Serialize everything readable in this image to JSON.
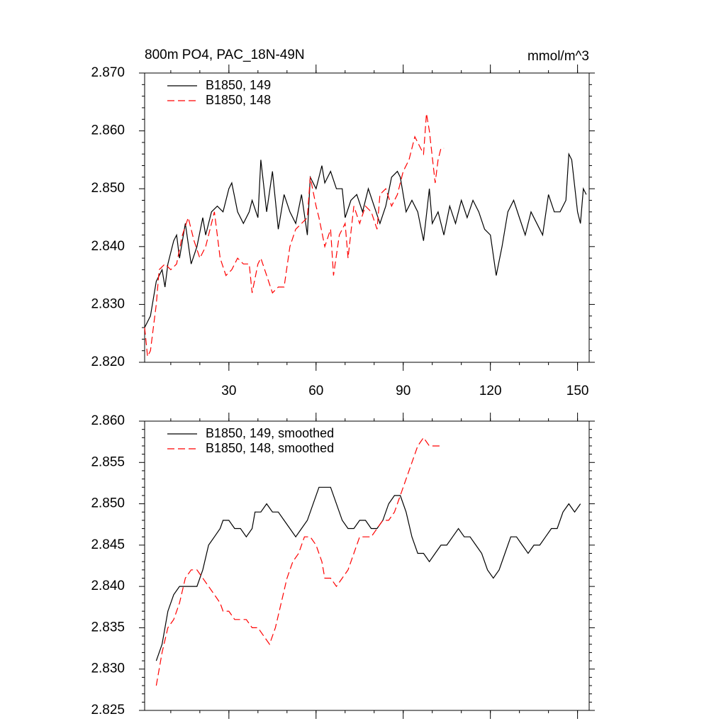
{
  "chart_data": [
    {
      "type": "line",
      "title": "800m PO4, PAC_18N-49N",
      "units": "mmol/m^3",
      "xlim": [
        1,
        154
      ],
      "xticks": [
        30,
        60,
        90,
        120,
        150
      ],
      "show_xtick_labels": true,
      "ylim": [
        2.82,
        2.87
      ],
      "yticks": [
        {
          "value": 2.82,
          "label": "2.820"
        },
        {
          "value": 2.83,
          "label": "2.830"
        },
        {
          "value": 2.84,
          "label": "2.840"
        },
        {
          "value": 2.85,
          "label": "2.850"
        },
        {
          "value": 2.86,
          "label": "2.860"
        },
        {
          "value": 2.87,
          "label": "2.870"
        }
      ],
      "series": [
        {
          "name": "B1850, 149",
          "color": "#000000",
          "dash": false,
          "x": [
            1,
            3,
            5,
            7,
            8,
            9,
            11,
            12,
            13,
            15,
            17,
            19,
            21,
            22,
            24,
            26,
            28,
            30,
            31,
            33,
            35,
            37,
            38,
            40,
            41,
            43,
            45,
            47,
            49,
            51,
            53,
            55,
            57,
            58,
            60,
            62,
            63,
            65,
            67,
            69,
            70,
            72,
            74,
            76,
            78,
            80,
            82,
            84,
            86,
            88,
            89,
            91,
            93,
            95,
            97,
            99,
            100,
            102,
            104,
            106,
            108,
            110,
            112,
            114,
            116,
            118,
            120,
            122,
            124,
            126,
            128,
            130,
            132,
            134,
            136,
            138,
            140,
            142,
            144,
            146,
            147,
            148,
            150,
            151,
            152,
            153
          ],
          "values": [
            2.826,
            2.828,
            2.834,
            2.836,
            2.833,
            2.837,
            2.841,
            2.842,
            2.838,
            2.844,
            2.837,
            2.84,
            2.845,
            2.842,
            2.846,
            2.847,
            2.846,
            2.85,
            2.851,
            2.846,
            2.844,
            2.846,
            2.848,
            2.845,
            2.855,
            2.846,
            2.853,
            2.843,
            2.849,
            2.846,
            2.844,
            2.849,
            2.842,
            2.852,
            2.85,
            2.854,
            2.851,
            2.853,
            2.85,
            2.85,
            2.845,
            2.848,
            2.849,
            2.846,
            2.85,
            2.847,
            2.844,
            2.847,
            2.852,
            2.853,
            2.852,
            2.846,
            2.848,
            2.846,
            2.841,
            2.85,
            2.844,
            2.846,
            2.842,
            2.847,
            2.844,
            2.848,
            2.845,
            2.848,
            2.846,
            2.843,
            2.842,
            2.835,
            2.84,
            2.846,
            2.848,
            2.845,
            2.842,
            2.846,
            2.844,
            2.842,
            2.849,
            2.846,
            2.846,
            2.848,
            2.856,
            2.855,
            2.846,
            2.844,
            2.85,
            2.849
          ]
        },
        {
          "name": "B1850, 148",
          "color": "#ff0000",
          "dash": true,
          "x": [
            1,
            2,
            3,
            5,
            6,
            8,
            10,
            12,
            14,
            16,
            18,
            20,
            22,
            24,
            25,
            27,
            29,
            31,
            33,
            35,
            37,
            38,
            40,
            41,
            43,
            45,
            47,
            49,
            51,
            53,
            55,
            57,
            58,
            60,
            61,
            63,
            65,
            66,
            68,
            70,
            71,
            73,
            75,
            77,
            79,
            81,
            82,
            84,
            86,
            88,
            90,
            92,
            94,
            96,
            97,
            98,
            99,
            101,
            102,
            103,
            104
          ],
          "values": [
            2.826,
            2.821,
            2.822,
            2.83,
            2.836,
            2.837,
            2.836,
            2.837,
            2.842,
            2.845,
            2.841,
            2.838,
            2.84,
            2.844,
            2.846,
            2.838,
            2.835,
            2.836,
            2.838,
            2.837,
            2.837,
            2.832,
            2.837,
            2.838,
            2.835,
            2.832,
            2.833,
            2.833,
            2.84,
            2.843,
            2.844,
            2.845,
            2.852,
            2.847,
            2.845,
            2.84,
            2.843,
            2.835,
            2.842,
            2.844,
            2.838,
            2.847,
            2.844,
            2.847,
            2.846,
            2.843,
            2.849,
            2.85,
            2.847,
            2.849,
            2.853,
            2.855,
            2.859,
            2.857,
            2.856,
            2.863,
            2.86,
            2.851,
            2.855,
            2.857,
            2.857
          ]
        }
      ]
    },
    {
      "type": "line",
      "xlim": [
        1,
        154
      ],
      "xticks": [
        30,
        60,
        90,
        120,
        150
      ],
      "show_xtick_labels": false,
      "ylim": [
        2.825,
        2.86
      ],
      "yticks": [
        2.825,
        {
          "value": 2.83,
          "label": "2.830"
        },
        2.835,
        {
          "value": 2.84,
          "label": "2.840"
        },
        2.845,
        {
          "value": 2.85,
          "label": "2.850"
        },
        2.855,
        {
          "value": 2.86,
          "label": "2.860"
        }
      ],
      "series": [
        {
          "name": "B1850, 149, smoothed",
          "color": "#000000",
          "dash": false,
          "x": [
            5,
            7,
            9,
            11,
            13,
            15,
            17,
            19,
            21,
            23,
            25,
            27,
            28,
            30,
            32,
            34,
            36,
            38,
            39,
            41,
            43,
            45,
            47,
            49,
            51,
            53,
            55,
            57,
            59,
            61,
            63,
            65,
            67,
            69,
            71,
            73,
            75,
            77,
            79,
            81,
            83,
            85,
            87,
            89,
            91,
            93,
            95,
            97,
            99,
            101,
            103,
            105,
            107,
            109,
            111,
            113,
            115,
            117,
            119,
            121,
            123,
            125,
            127,
            129,
            131,
            133,
            135,
            137,
            139,
            141,
            143,
            145,
            147,
            149,
            151
          ],
          "values": [
            2.831,
            2.833,
            2.837,
            2.839,
            2.84,
            2.84,
            2.84,
            2.84,
            2.842,
            2.845,
            2.846,
            2.847,
            2.848,
            2.848,
            2.847,
            2.847,
            2.846,
            2.847,
            2.849,
            2.849,
            2.85,
            2.849,
            2.849,
            2.848,
            2.847,
            2.846,
            2.847,
            2.848,
            2.85,
            2.852,
            2.852,
            2.852,
            2.85,
            2.848,
            2.847,
            2.847,
            2.848,
            2.848,
            2.847,
            2.847,
            2.848,
            2.85,
            2.851,
            2.851,
            2.849,
            2.846,
            2.844,
            2.844,
            2.843,
            2.844,
            2.845,
            2.845,
            2.846,
            2.847,
            2.846,
            2.846,
            2.845,
            2.844,
            2.842,
            2.841,
            2.842,
            2.844,
            2.846,
            2.846,
            2.845,
            2.844,
            2.845,
            2.845,
            2.846,
            2.847,
            2.847,
            2.849,
            2.85,
            2.849,
            2.85
          ]
        },
        {
          "name": "B1850, 148, smoothed",
          "color": "#ff0000",
          "dash": true,
          "x": [
            5,
            7,
            9,
            11,
            13,
            15,
            17,
            19,
            21,
            23,
            25,
            27,
            28,
            30,
            32,
            34,
            36,
            38,
            40,
            42,
            44,
            46,
            48,
            50,
            52,
            54,
            56,
            58,
            60,
            62,
            63,
            65,
            67,
            69,
            71,
            73,
            75,
            77,
            79,
            81,
            83,
            85,
            87,
            89,
            91,
            93,
            95,
            97,
            99,
            101,
            103
          ],
          "values": [
            2.828,
            2.832,
            2.835,
            2.836,
            2.838,
            2.841,
            2.842,
            2.842,
            2.841,
            2.84,
            2.839,
            2.838,
            2.837,
            2.837,
            2.836,
            2.836,
            2.836,
            2.835,
            2.835,
            2.834,
            2.833,
            2.835,
            2.838,
            2.841,
            2.843,
            2.844,
            2.846,
            2.846,
            2.845,
            2.843,
            2.841,
            2.841,
            2.84,
            2.841,
            2.842,
            2.844,
            2.846,
            2.846,
            2.846,
            2.847,
            2.848,
            2.848,
            2.849,
            2.851,
            2.853,
            2.855,
            2.857,
            2.858,
            2.857,
            2.857,
            2.857
          ]
        }
      ]
    }
  ]
}
